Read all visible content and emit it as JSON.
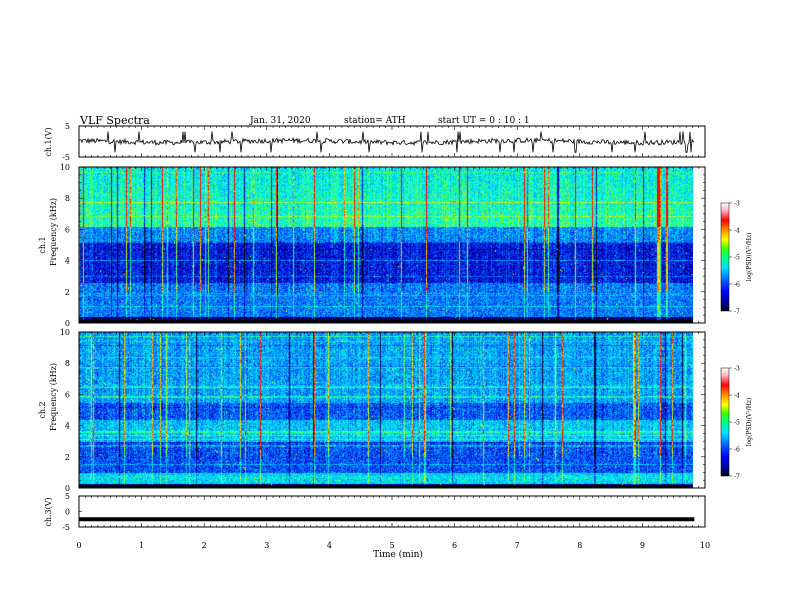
{
  "header": {
    "title": "VLF  Spectra",
    "date": "Jan. 31, 2020",
    "station": "station= ATH",
    "start": "start  UT  =    0  : 10 : 1"
  },
  "chart_data": [
    {
      "type": "line",
      "panel": "ch1-waveform",
      "ylabel": "ch.1(V)",
      "ylim": [
        -5,
        5
      ],
      "yticks": [
        5,
        -5
      ],
      "xlim": [
        0,
        10
      ],
      "trace_xlim": [
        0,
        9.83
      ],
      "level": 0.0,
      "color": "#000000"
    },
    {
      "type": "heatmap",
      "panel": "ch1-spectrogram",
      "ylabel": [
        "ch.1",
        "Frequency  (kHz)"
      ],
      "ylim": [
        0,
        10
      ],
      "yticks": [
        0,
        2,
        4,
        6,
        8,
        10
      ],
      "xlim": [
        0,
        10
      ],
      "data_xlim": [
        0,
        9.83
      ],
      "colorbar": {
        "label": "log(PSD)(V²/Hz)",
        "range": [
          -7,
          -3
        ],
        "ticks": [
          "-3",
          "-4",
          "-5",
          "-6",
          "-7"
        ]
      },
      "dominant_bands_khz": [
        [
          0,
          0.4
        ],
        [
          2.5,
          5.2
        ]
      ],
      "bright_band_khz": [
        5.8,
        10
      ]
    },
    {
      "type": "heatmap",
      "panel": "ch2-spectrogram",
      "ylabel": [
        "ch.2",
        "Frequency  (kHz)"
      ],
      "ylim": [
        0,
        10
      ],
      "yticks": [
        0,
        2,
        4,
        6,
        8,
        10
      ],
      "xlim": [
        0,
        10
      ],
      "data_xlim": [
        0,
        9.83
      ],
      "colorbar": {
        "label": "log(PSD)(V²/Hz)",
        "range": [
          -7,
          -3
        ],
        "ticks": [
          "-3",
          "-4",
          "-5",
          "-6",
          "-7"
        ]
      }
    },
    {
      "type": "line",
      "panel": "ch3-waveform",
      "ylabel": "ch.3(V)",
      "ylim": [
        -5,
        5
      ],
      "yticks": [
        5,
        0,
        -5
      ],
      "xlim": [
        0,
        10
      ],
      "trace_xlim": [
        0,
        9.83
      ],
      "level": -2.5,
      "color": "#000000"
    }
  ],
  "xaxis": {
    "label": "Time  (min)",
    "ticks": [
      "0",
      "1",
      "2",
      "3",
      "4",
      "5",
      "6",
      "7",
      "8",
      "9",
      "10"
    ]
  },
  "colormap": [
    "#000000",
    "#00006e",
    "#0000c8",
    "#0050ff",
    "#00b4ff",
    "#00ffe6",
    "#50ff50",
    "#ffff00",
    "#ff8c00",
    "#ff0000",
    "#ffb4c8",
    "#ffffff"
  ]
}
